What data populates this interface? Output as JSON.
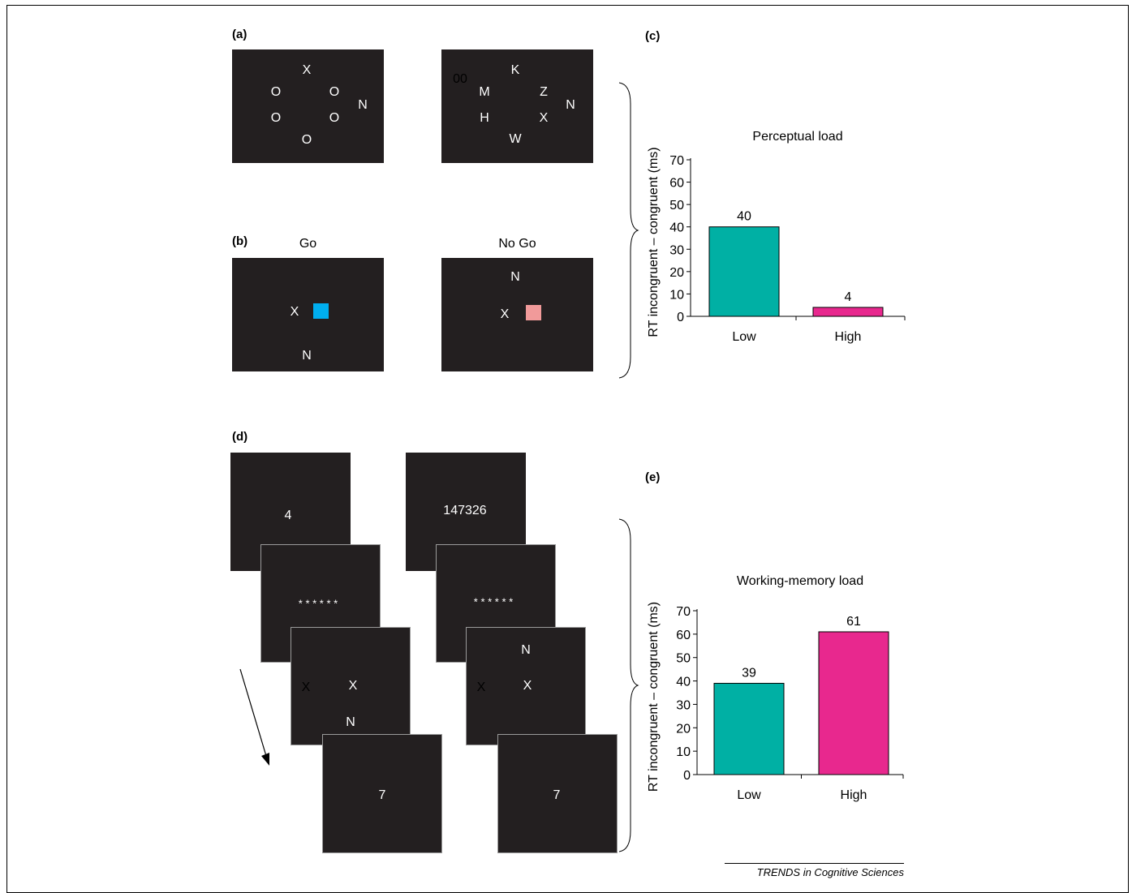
{
  "labels": {
    "a": "(a)",
    "b": "(b)",
    "c": "(c)",
    "d": "(d)",
    "e": "(e)"
  },
  "panel_a": {
    "low": {
      "letters": [
        "X",
        "O",
        "O",
        "O",
        "O",
        "O",
        "N"
      ]
    },
    "high": {
      "letters": [
        "00",
        "K",
        "M",
        "Z",
        "H",
        "X",
        "W",
        "N"
      ]
    }
  },
  "panel_b": {
    "go": {
      "caption": "Go",
      "letters": [
        "X",
        "N"
      ],
      "square_color": "#00aeef"
    },
    "nogo": {
      "caption": "No Go",
      "letters": [
        "N",
        "X"
      ],
      "square_color": "#f19a9a"
    }
  },
  "panel_d": {
    "low": {
      "memory": "4",
      "mask": "* * * * * *",
      "probe": [
        "X",
        "X",
        "N"
      ],
      "recall": "7"
    },
    "high": {
      "memory": "147326",
      "mask": "* * * * * *",
      "probe": [
        "N",
        "X",
        "X"
      ],
      "recall": "7"
    }
  },
  "colors": {
    "low": "#00b0a4",
    "high": "#e8288e",
    "screen": "#231f20"
  },
  "chart_data": [
    {
      "type": "bar",
      "title": "Perceptual load",
      "ylabel": "RT incongruent – congruent (ms)",
      "xlabel": "",
      "categories": [
        "Low",
        "High"
      ],
      "values": [
        40,
        4
      ],
      "data_labels": [
        "40",
        "4"
      ],
      "ylim": [
        0,
        70
      ],
      "yticks": [
        0,
        10,
        20,
        30,
        40,
        50,
        60,
        70
      ],
      "ytick_labels": [
        "0",
        "10",
        "20",
        "30",
        "40",
        "50",
        "60",
        "70"
      ],
      "bar_colors": [
        "#00b0a4",
        "#e8288e"
      ],
      "grid": false
    },
    {
      "type": "bar",
      "title": "Working-memory load",
      "ylabel": "RT incongruent – congruent (ms)",
      "xlabel": "",
      "categories": [
        "Low",
        "High"
      ],
      "values": [
        39,
        61
      ],
      "data_labels": [
        "39",
        "61"
      ],
      "ylim": [
        0,
        70
      ],
      "yticks": [
        0,
        10,
        20,
        30,
        40,
        50,
        60,
        70
      ],
      "ytick_labels": [
        "0",
        "10",
        "20",
        "30",
        "40",
        "50",
        "60",
        "70"
      ],
      "bar_colors": [
        "#00b0a4",
        "#e8288e"
      ],
      "grid": false
    }
  ],
  "credit": "TRENDS in Cognitive Sciences"
}
